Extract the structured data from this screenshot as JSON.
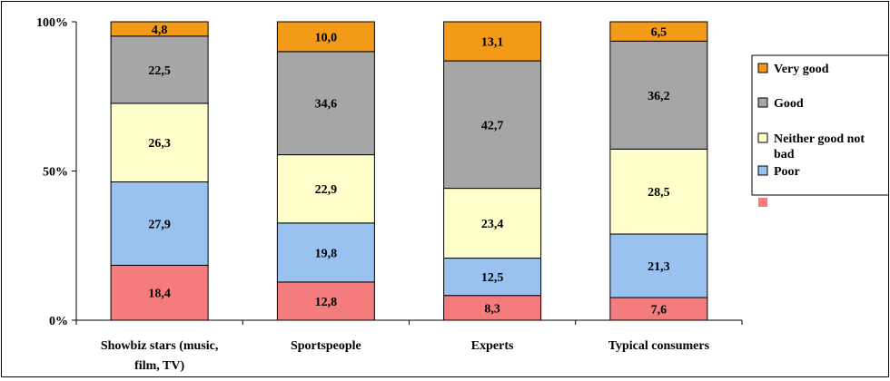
{
  "chart_data": {
    "type": "bar",
    "stacked": true,
    "percent_stacked": true,
    "categories": [
      [
        "Showbiz stars (music,",
        "film, TV)"
      ],
      [
        "Sportspeople"
      ],
      [
        "Experts"
      ],
      [
        "Typical consumers"
      ]
    ],
    "series": [
      {
        "name": "",
        "color": "#f47c7c",
        "values": [
          18.4,
          12.8,
          8.3,
          7.6
        ],
        "labels": [
          "18,4",
          "12,8",
          "8,3",
          "7,6"
        ]
      },
      {
        "name": "Poor",
        "color": "#99c2f0",
        "values": [
          27.9,
          19.8,
          12.5,
          21.3
        ],
        "labels": [
          "27,9",
          "19,8",
          "12,5",
          "21,3"
        ]
      },
      {
        "name": "Neither good not bad",
        "color": "#ffffcc",
        "values": [
          26.3,
          22.9,
          23.4,
          28.5
        ],
        "labels": [
          "26,3",
          "22,9",
          "23,4",
          "28,5"
        ]
      },
      {
        "name": "Good",
        "color": "#a6a6a6",
        "values": [
          22.5,
          34.6,
          42.7,
          36.2
        ],
        "labels": [
          "22,5",
          "34,6",
          "42,7",
          "36,2"
        ]
      },
      {
        "name": "Very good",
        "color": "#f39a19",
        "values": [
          4.8,
          10.0,
          13.1,
          6.5
        ],
        "labels": [
          "4,8",
          "10,0",
          "13,1",
          "6,5"
        ]
      }
    ],
    "y_ticks": [
      "0%",
      "50%",
      "100%"
    ],
    "ylim": [
      0,
      100
    ],
    "grid": false,
    "legend_position": "right",
    "legend_order": [
      {
        "name": "Very good",
        "color": "#f39a19",
        "lines": [
          "Very good"
        ]
      },
      {
        "name": "Good",
        "color": "#a6a6a6",
        "lines": [
          "Good"
        ]
      },
      {
        "name": "Neither good not bad",
        "color": "#ffffcc",
        "lines": [
          "Neither good not",
          "bad"
        ]
      },
      {
        "name": "Poor",
        "color": "#99c2f0",
        "lines": [
          "Poor"
        ]
      },
      {
        "name": "",
        "color": "#f47c7c",
        "lines": [
          ""
        ]
      }
    ]
  }
}
